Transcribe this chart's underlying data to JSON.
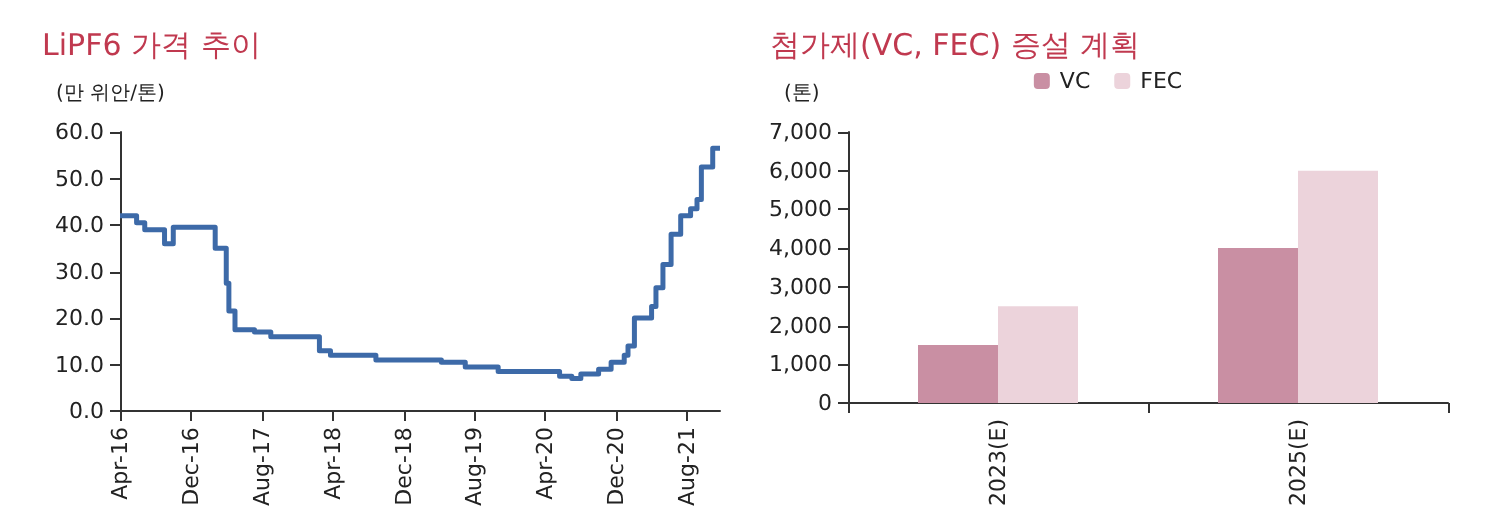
{
  "chart_data": [
    {
      "type": "step",
      "title": "LiPF6 가격 추이",
      "ylabel": "(만 위안/톤)",
      "x": [
        "2016-04-01",
        "2016-05-28",
        "2016-06-25",
        "2016-09-01",
        "2016-10-01",
        "2017-02-22",
        "2017-04-01",
        "2017-04-10",
        "2017-05-01",
        "2017-07-07",
        "2017-09-01",
        "2018-02-15",
        "2018-03-25",
        "2018-08-28",
        "2019-04-10",
        "2019-07-01",
        "2019-10-22",
        "2020-05-20",
        "2020-07-01",
        "2020-08-01",
        "2020-10-01",
        "2020-11-13",
        "2020-12-28",
        "2021-01-10",
        "2021-02-01",
        "2021-04-01",
        "2021-04-16",
        "2021-05-10",
        "2021-06-07",
        "2021-07-10",
        "2021-08-13",
        "2021-09-04",
        "2021-09-19",
        "2021-10-28",
        "2021-11-22"
      ],
      "series": [
        {
          "color": "#3d6aa8",
          "values": [
            42,
            40.5,
            39,
            36,
            39.5,
            35,
            27.5,
            21.5,
            17.5,
            17,
            16,
            13,
            12,
            11,
            10.5,
            9.5,
            8.5,
            7.5,
            7,
            8,
            9,
            10.5,
            12,
            14,
            20,
            22.5,
            26.5,
            31.5,
            38,
            42,
            43.5,
            45.5,
            52.5,
            56.5,
            56.5
          ]
        }
      ],
      "xlim": [
        "2016-04-01",
        "2021-11-22"
      ],
      "xticks": [
        {
          "value": "2016-04-01",
          "label": "Apr-16"
        },
        {
          "value": "2016-12-01",
          "label": "Dec-16"
        },
        {
          "value": "2017-08-01",
          "label": "Aug-17"
        },
        {
          "value": "2018-04-01",
          "label": "Apr-18"
        },
        {
          "value": "2018-12-01",
          "label": "Dec-18"
        },
        {
          "value": "2019-08-01",
          "label": "Aug-19"
        },
        {
          "value": "2020-04-01",
          "label": "Apr-20"
        },
        {
          "value": "2020-12-01",
          "label": "Dec-20"
        },
        {
          "value": "2021-08-01",
          "label": "Aug-21"
        }
      ],
      "ylim": [
        0,
        60
      ],
      "yticks": [
        {
          "value": 0,
          "label": "0.0"
        },
        {
          "value": 10,
          "label": "10.0"
        },
        {
          "value": 20,
          "label": "20.0"
        },
        {
          "value": 30,
          "label": "30.0"
        },
        {
          "value": 40,
          "label": "40.0"
        },
        {
          "value": 50,
          "label": "50.0"
        },
        {
          "value": 60,
          "label": "60.0"
        }
      ],
      "grid": false,
      "legend": false,
      "marker": "none",
      "line_style": "solid"
    },
    {
      "type": "bar",
      "title": "첨가제(VC, FEC) 증설 계획",
      "ylabel": "(톤)",
      "categories": [
        "2023(E)",
        "2025(E)"
      ],
      "series": [
        {
          "name": "VC",
          "color": "#c98fa3",
          "values": [
            1500,
            4000
          ]
        },
        {
          "name": "FEC",
          "color": "#ecd3db",
          "values": [
            2500,
            6000
          ]
        }
      ],
      "ylim": [
        0,
        7000
      ],
      "yticks": [
        0,
        {
          "value": 1000,
          "label": "1,000"
        },
        {
          "value": 2000,
          "label": "2,000"
        },
        {
          "value": 3000,
          "label": "3,000"
        },
        {
          "value": 4000,
          "label": "4,000"
        },
        {
          "value": 5000,
          "label": "5,000"
        },
        {
          "value": 6000,
          "label": "6,000"
        },
        {
          "value": 7000,
          "label": "7,000"
        }
      ],
      "grid": false,
      "legend": "top"
    }
  ]
}
